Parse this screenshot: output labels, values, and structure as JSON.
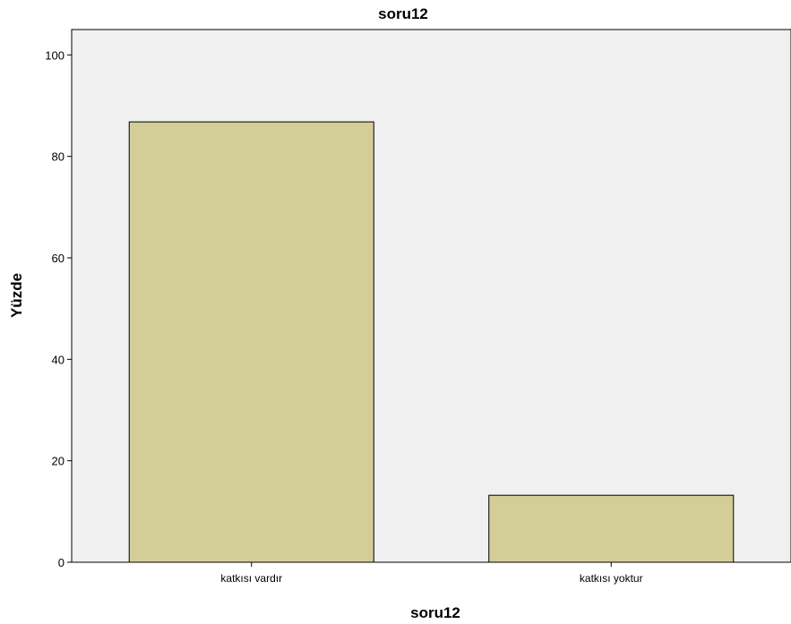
{
  "chart_data": {
    "type": "bar",
    "title": "soru12",
    "xlabel": "soru12",
    "ylabel": "Yüzde",
    "categories": [
      "katkısı vardır",
      "katkısı yoktur"
    ],
    "values": [
      86.8,
      13.2
    ],
    "ylim": [
      0,
      105
    ],
    "yticks": [
      0,
      20,
      40,
      60,
      80,
      100
    ],
    "grid": false,
    "legend": "none",
    "colors": {
      "plot_background": "#f0f0f0",
      "bar_fill": "#d3cd98",
      "bar_stroke": "#000000"
    }
  }
}
